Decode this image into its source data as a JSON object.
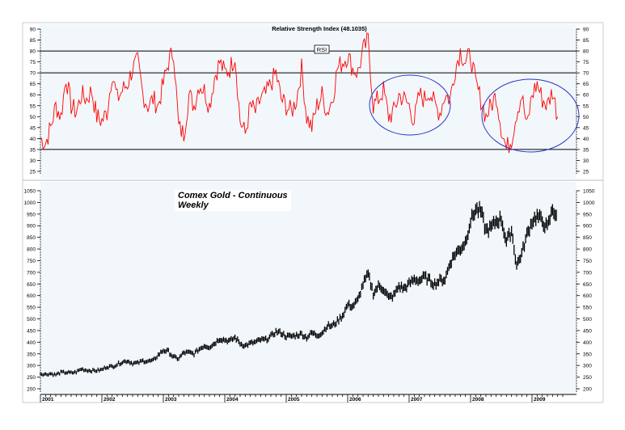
{
  "chart_data": [
    {
      "type": "line",
      "title": "Relative Strength Index (48.1035)",
      "series_label": "RSI",
      "ylim": [
        25,
        90
      ],
      "yticks": [
        90,
        85,
        80,
        75,
        70,
        65,
        60,
        55,
        50,
        45,
        40,
        35,
        30,
        25
      ],
      "reference_lines": [
        80,
        70,
        35
      ],
      "line_color": "#ff0000",
      "annotations": [
        {
          "type": "ellipse",
          "center_year": 2007.0,
          "center_value": 55,
          "color": "#2a35c8"
        },
        {
          "type": "ellipse",
          "center_year": 2009.0,
          "center_value": 50,
          "color": "#2a35c8"
        }
      ],
      "x_start": "2001-01",
      "x_step": "month",
      "values": [
        40,
        38,
        45,
        55,
        50,
        68,
        55,
        52,
        60,
        58,
        62,
        50,
        48,
        52,
        70,
        58,
        62,
        65,
        72,
        75,
        60,
        55,
        58,
        55,
        65,
        75,
        80,
        45,
        42,
        60,
        55,
        65,
        62,
        55,
        68,
        75,
        70,
        72,
        78,
        48,
        42,
        55,
        52,
        58,
        60,
        65,
        70,
        58,
        55,
        52,
        58,
        72,
        50,
        45,
        55,
        60,
        52,
        58,
        72,
        75,
        78,
        72,
        70,
        80,
        85,
        55,
        58,
        62,
        50,
        52,
        60,
        58,
        55,
        48,
        60,
        58,
        62,
        55,
        52,
        60,
        58,
        72,
        80,
        75,
        78,
        65,
        58,
        50,
        55,
        60,
        45,
        35,
        40,
        52,
        60,
        45,
        60,
        65,
        58,
        55,
        62,
        50
      ]
    },
    {
      "type": "line",
      "title": "Comex Gold - Continuous",
      "subtitle": "Weekly",
      "ylim": [
        200,
        1050
      ],
      "yticks": [
        1050,
        1000,
        950,
        900,
        850,
        800,
        750,
        700,
        650,
        600,
        550,
        500,
        450,
        400,
        350,
        300,
        250,
        200
      ],
      "line_color": "#000000",
      "x_start": "2001-01",
      "x_step": "month",
      "values": [
        265,
        262,
        265,
        260,
        270,
        270,
        268,
        272,
        285,
        280,
        278,
        278,
        282,
        295,
        295,
        305,
        315,
        320,
        310,
        310,
        320,
        318,
        320,
        345,
        365,
        360,
        335,
        330,
        355,
        355,
        350,
        370,
        385,
        380,
        395,
        415,
        410,
        405,
        420,
        395,
        385,
        395,
        400,
        410,
        410,
        425,
        445,
        440,
        425,
        425,
        430,
        435,
        420,
        440,
        430,
        440,
        470,
        470,
        490,
        515,
        560,
        555,
        580,
        650,
        690,
        610,
        640,
        630,
        590,
        600,
        640,
        630,
        650,
        670,
        665,
        680,
        665,
        650,
        665,
        670,
        740,
        780,
        800,
        830,
        920,
        970,
        960,
        880,
        890,
        920,
        930,
        830,
        880,
        730,
        780,
        860,
        920,
        940,
        920,
        890,
        970,
        940
      ]
    }
  ],
  "x_axis": {
    "labels": [
      "2001",
      "2002",
      "2003",
      "2004",
      "2005",
      "2006",
      "2007",
      "2008",
      "2009"
    ]
  }
}
